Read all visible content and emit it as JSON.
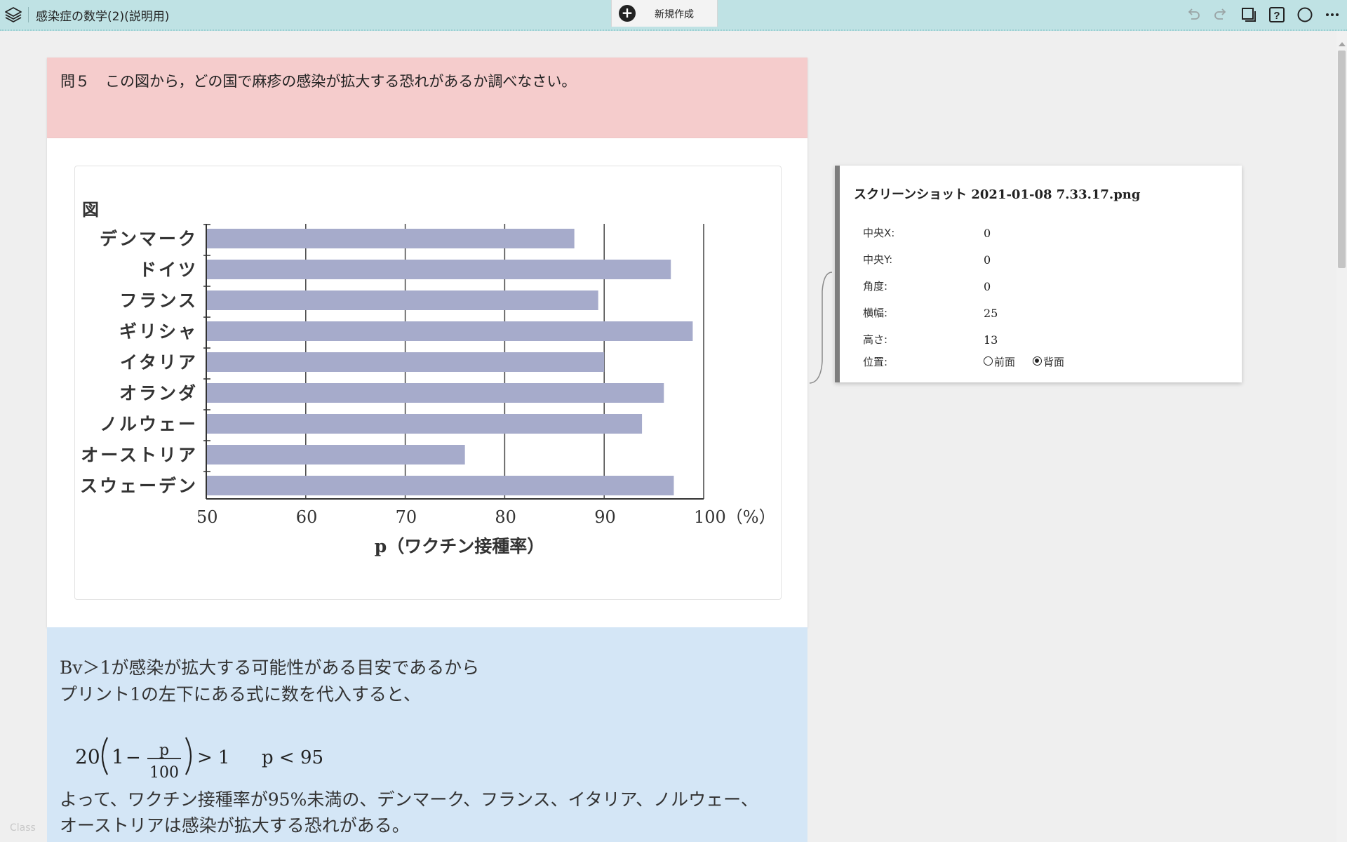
{
  "app": {
    "document_title": "感染症の数学(2)(説明用)",
    "new_button_label": "新規作成",
    "footer_text": "Class"
  },
  "toolbar": {
    "icons": [
      "layers-icon",
      "undo-icon",
      "redo-icon",
      "copy-pages-icon",
      "help-icon",
      "circle-icon",
      "more-icon"
    ]
  },
  "question": {
    "number": "問５",
    "text": "この図から，どの国で麻疹の感染が拡大する恐れがあるか調べなさい。"
  },
  "chart_data": {
    "type": "bar",
    "orientation": "horizontal",
    "title": "図",
    "categories": [
      "デンマーク",
      "ドイツ",
      "フランス",
      "ギリシャ",
      "イタリア",
      "オランダ",
      "ノルウェー",
      "オーストリア",
      "スウェーデン"
    ],
    "values": [
      87,
      96.7,
      89.4,
      98.9,
      90,
      96,
      93.8,
      76,
      97
    ],
    "x_ticks": [
      "50",
      "60",
      "70",
      "80",
      "90",
      "100（%）"
    ],
    "xlim": [
      50,
      100
    ],
    "xlabel": "p（ワクチン接種率）",
    "grid": "vertical",
    "bar_color": "#a6abcb"
  },
  "answer": {
    "line1": "Bv＞1が感染が拡大する可能性がある目安であるから",
    "line2": "プリント1の左下にある式に数を代入すると、",
    "formula": {
      "coef": "20",
      "one": "1",
      "minus": "−",
      "numerator": "p",
      "denominator": "100",
      "gt": "> 1",
      "result": "p < 95"
    },
    "line3": "よって、ワクチン接種率が95%未満の、デンマーク、フランス、イタリア、ノルウェー、",
    "line4": "オーストリアは感染が拡大する恐れがある。"
  },
  "properties_panel": {
    "title": "スクリーンショット 2021-01-08 7.33.17.png",
    "rows": [
      {
        "label": "中央X:",
        "value": "0"
      },
      {
        "label": "中央Y:",
        "value": "0"
      },
      {
        "label": "角度:",
        "value": "0"
      },
      {
        "label": "横幅:",
        "value": "25"
      },
      {
        "label": "高さ:",
        "value": "13"
      }
    ],
    "position_label": "位置:",
    "position_options": [
      "前面",
      "背面"
    ],
    "position_selected": "背面"
  }
}
